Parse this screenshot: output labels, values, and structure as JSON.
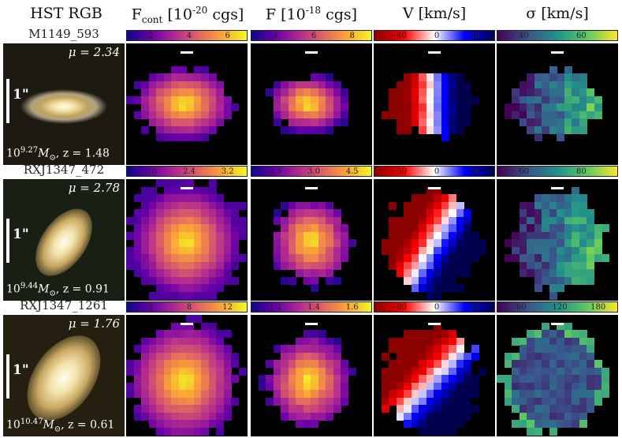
{
  "headers": {
    "hst": "HST RGB",
    "fcont": "F",
    "fcont_sub": "cont",
    "fcont_units": " [10",
    "fcont_exp": "-20",
    "fcont_tail": " cgs]",
    "f": "F  [10",
    "f_exp": "-18",
    "f_tail": " cgs]",
    "v": "V [km/s]",
    "sigma": "σ [km/s]"
  },
  "scale_label": "1\"",
  "galaxies": [
    {
      "name": "M1149_593",
      "mu": "μ = 2.34",
      "mass_prefix": "10",
      "mass_exp": "9.27",
      "mass_suffix": "M",
      "z": ", z = 1.48",
      "colorbars": {
        "fcont": [
          "2",
          "4",
          "6"
        ],
        "f": [
          "4",
          "6",
          "8"
        ],
        "v": [
          "−40",
          "0",
          "40"
        ],
        "sigma": [
          "40",
          "60"
        ]
      }
    },
    {
      "name": "RXJ1347_472",
      "mu": "μ = 2.78",
      "mass_prefix": "10",
      "mass_exp": "9.44",
      "mass_suffix": "M",
      "z": ", z = 0.91",
      "colorbars": {
        "fcont": [
          "1.6",
          "2.4",
          "3.2"
        ],
        "f": [
          "1.5",
          "3.0",
          "4.5"
        ],
        "v": [
          "−50",
          "0",
          "50"
        ],
        "sigma": [
          "60",
          "80"
        ]
      }
    },
    {
      "name": "RXJ1347_1261",
      "mu": "μ = 1.76",
      "mass_prefix": "10",
      "mass_exp": "10.47",
      "mass_suffix": "M",
      "z": ", z = 0.61",
      "colorbars": {
        "fcont": [
          "4",
          "8",
          "12"
        ],
        "f": [
          "1.2",
          "1.4",
          "1.6"
        ],
        "v": [
          "−80",
          "0",
          "80"
        ],
        "sigma": [
          "60",
          "120",
          "180"
        ]
      }
    }
  ],
  "colors": {
    "plasma": [
      "#0d0887",
      "#6a00a8",
      "#b12a90",
      "#e16462",
      "#fca636",
      "#f0f921"
    ],
    "seismic": [
      "#8b0000",
      "#ff0000",
      "#ffffff",
      "#0000ff",
      "#00004c"
    ],
    "viridis": [
      "#440154",
      "#3b528b",
      "#21918c",
      "#5ec962",
      "#fde725"
    ]
  }
}
